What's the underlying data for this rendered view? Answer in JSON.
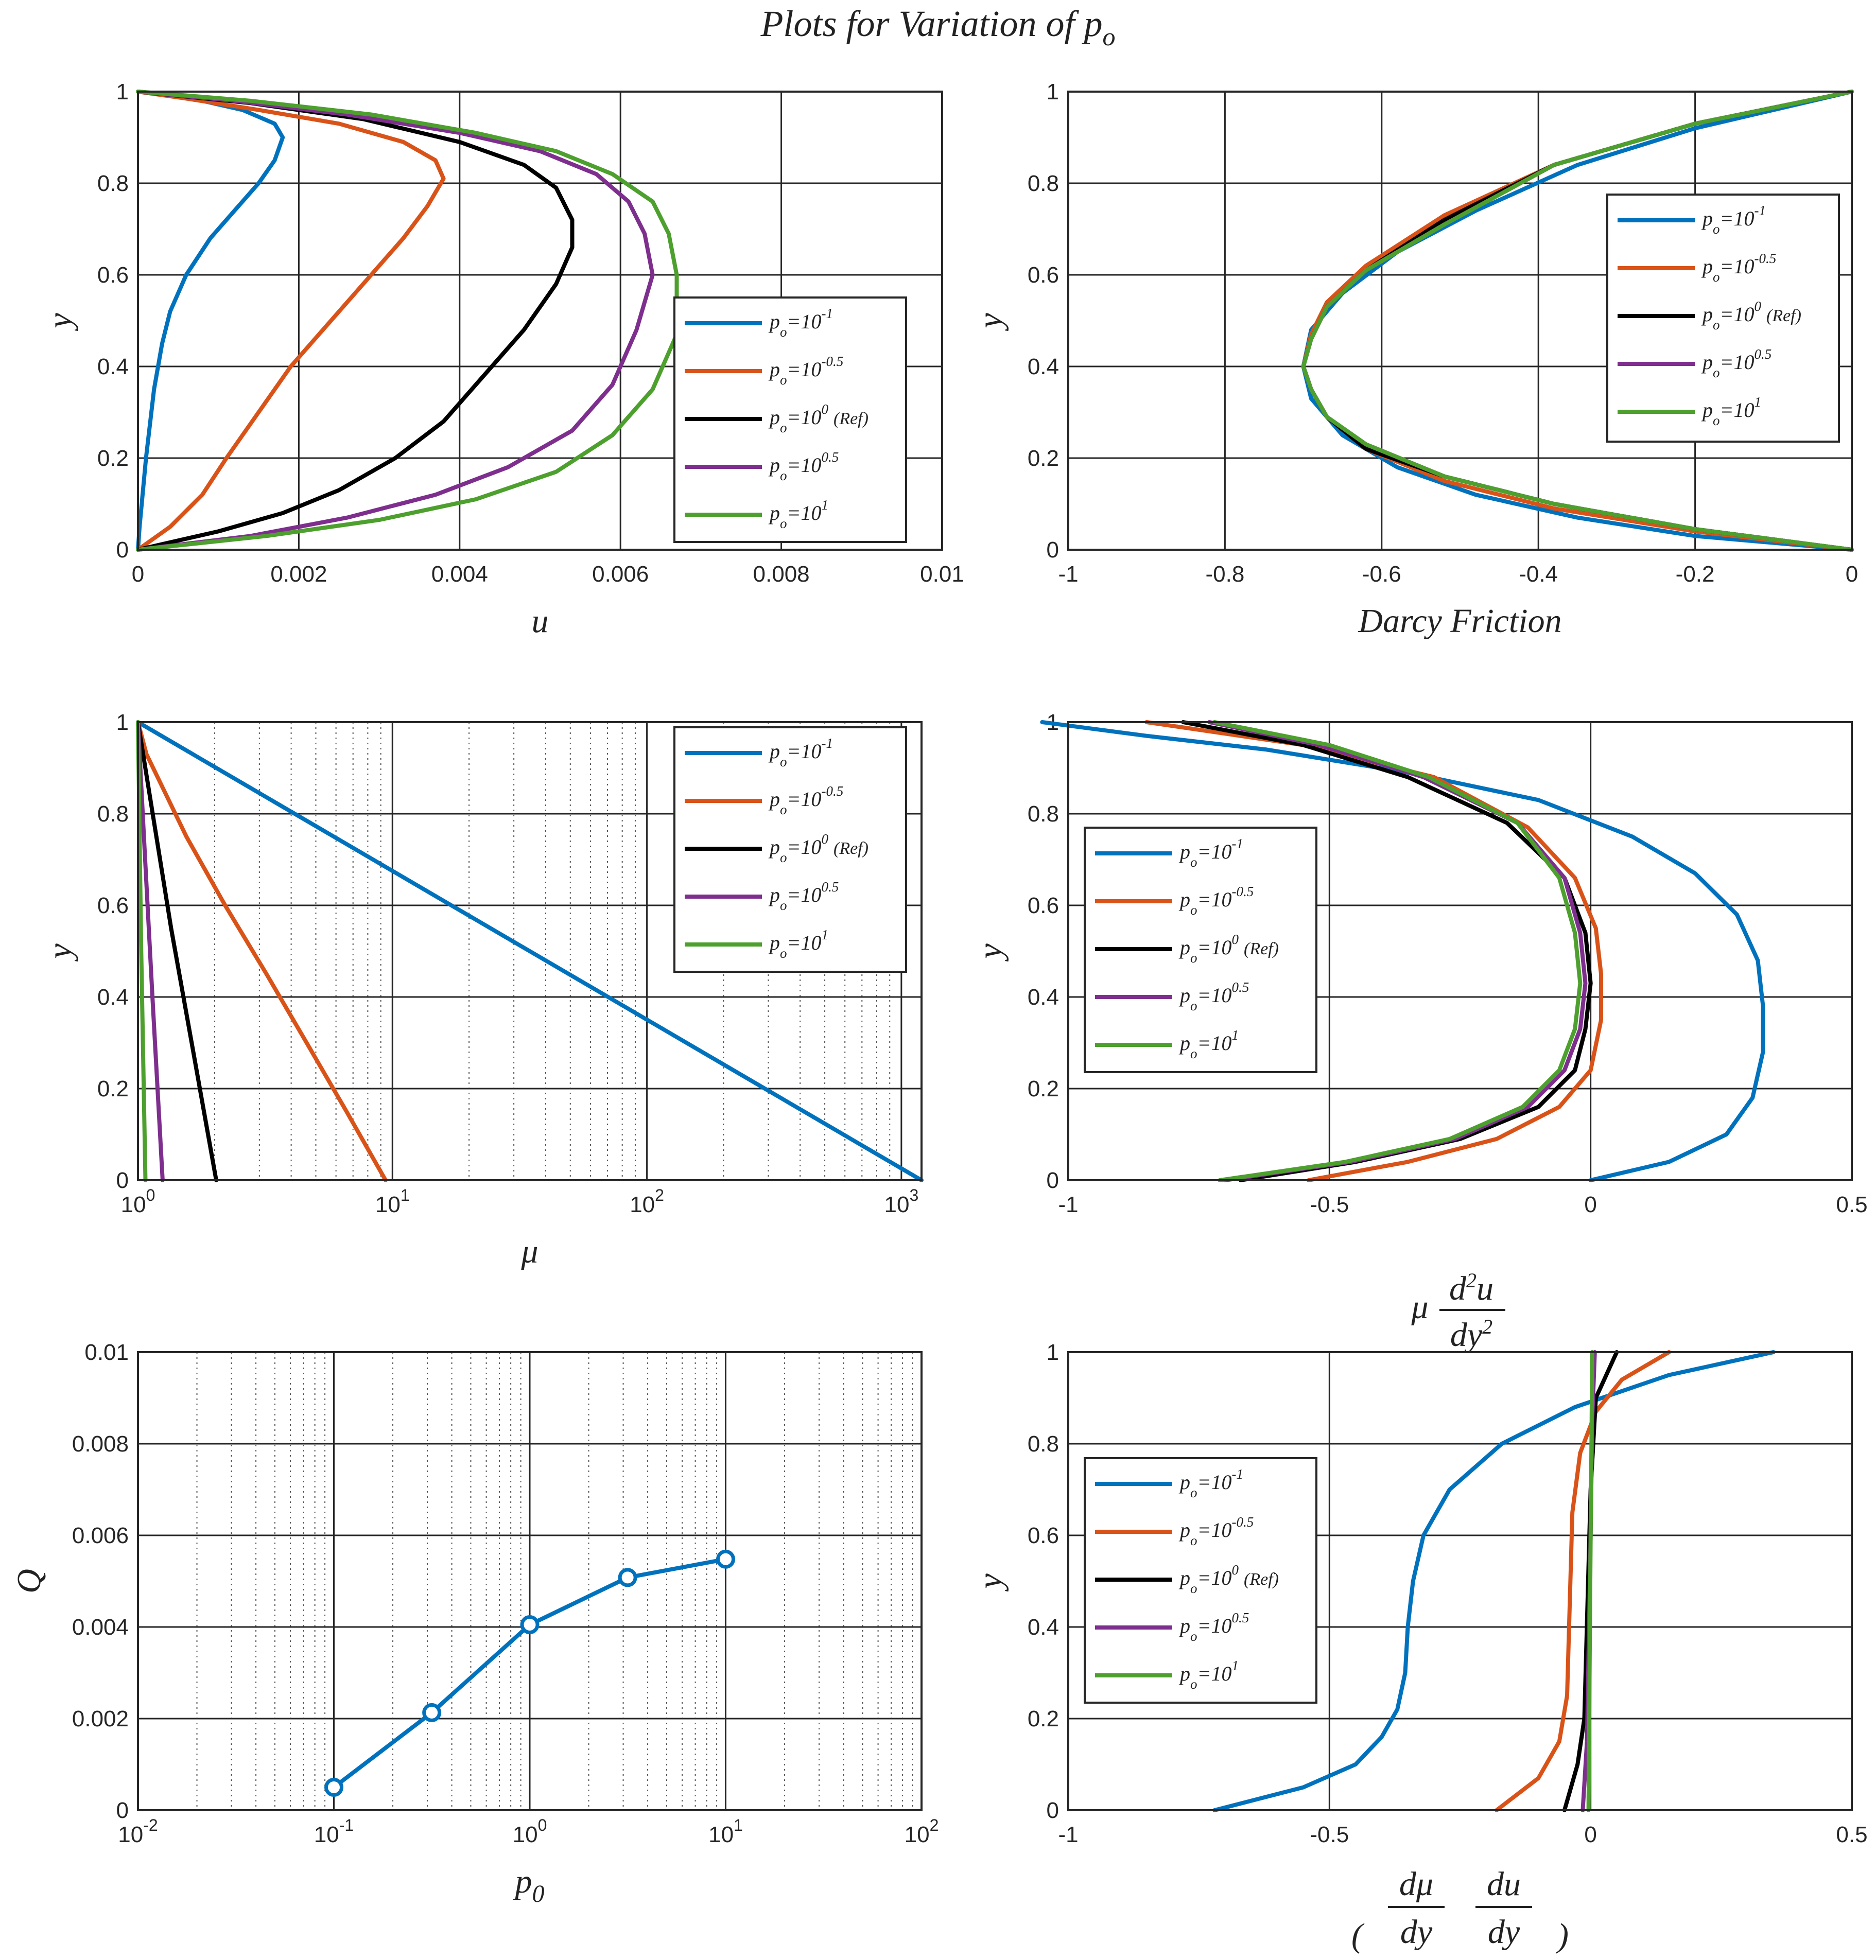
{
  "figure": {
    "title": {
      "main": "Plots for Variation of p",
      "sub": "o"
    }
  },
  "colors": {
    "p-1": "#0072BD",
    "p-0.5": "#D95319",
    "p0": "#000000",
    "p0.5": "#7E2F8E",
    "p1": "#4DA02E",
    "grid": "#262626",
    "frame": "#262626"
  },
  "legend_entries": [
    {
      "key": "p-1",
      "base": "p",
      "sub": "o",
      "mid": "=10",
      "sup": "-1",
      "extra": ""
    },
    {
      "key": "p-0.5",
      "base": "p",
      "sub": "o",
      "mid": "=10",
      "sup": "-0.5",
      "extra": ""
    },
    {
      "key": "p0",
      "base": "p",
      "sub": "o",
      "mid": "=10",
      "sup": "0",
      "extra": "(Ref)"
    },
    {
      "key": "p0.5",
      "base": "p",
      "sub": "o",
      "mid": "=10",
      "sup": "0.5",
      "extra": ""
    },
    {
      "key": "p1",
      "base": "p",
      "sub": "o",
      "mid": "=10",
      "sup": "1",
      "extra": ""
    }
  ],
  "chart_data": [
    {
      "id": "u",
      "type": "line",
      "xlabel": "u",
      "ylabel": "y",
      "xlim": [
        0,
        0.01
      ],
      "ylim": [
        0,
        1
      ],
      "xticks": [
        "0",
        "0.002",
        "0.004",
        "0.006",
        "0.008",
        "0.01"
      ],
      "yticks": [
        "0",
        "0.2",
        "0.4",
        "0.6",
        "0.8",
        "1"
      ],
      "grid": true,
      "legend": "right-middle",
      "series": [
        {
          "key": "p-1",
          "x": [
            0,
            2e-05,
            0.0001,
            0.0002,
            0.0003,
            0.0004,
            0.0006,
            0.0009,
            0.0012,
            0.0015,
            0.0017,
            0.0018,
            0.0017,
            0.0013,
            0.0008,
            0.0003,
            0
          ],
          "y": [
            0,
            0.05,
            0.2,
            0.35,
            0.45,
            0.52,
            0.6,
            0.68,
            0.74,
            0.8,
            0.85,
            0.9,
            0.93,
            0.96,
            0.98,
            0.995,
            1
          ]
        },
        {
          "key": "p-0.5",
          "x": [
            0,
            0.0004,
            0.0008,
            0.0011,
            0.0015,
            0.0019,
            0.0024,
            0.0029,
            0.0033,
            0.0036,
            0.0038,
            0.0037,
            0.0033,
            0.0025,
            0.0015,
            0.0006,
            0
          ],
          "y": [
            0,
            0.05,
            0.12,
            0.2,
            0.3,
            0.4,
            0.5,
            0.6,
            0.68,
            0.75,
            0.81,
            0.85,
            0.89,
            0.93,
            0.96,
            0.985,
            1
          ]
        },
        {
          "key": "p0",
          "x": [
            0,
            0.001,
            0.0018,
            0.0025,
            0.0032,
            0.0038,
            0.0043,
            0.0048,
            0.0052,
            0.0054,
            0.0054,
            0.0052,
            0.0048,
            0.004,
            0.0028,
            0.0014,
            0
          ],
          "y": [
            0,
            0.04,
            0.08,
            0.13,
            0.2,
            0.28,
            0.38,
            0.48,
            0.58,
            0.66,
            0.72,
            0.79,
            0.84,
            0.89,
            0.94,
            0.975,
            1
          ]
        },
        {
          "key": "p0.5",
          "x": [
            0,
            0.0014,
            0.0026,
            0.0037,
            0.0046,
            0.0054,
            0.0059,
            0.0062,
            0.0064,
            0.0063,
            0.0061,
            0.0057,
            0.005,
            0.004,
            0.0026,
            0.0012,
            0
          ],
          "y": [
            0,
            0.03,
            0.07,
            0.12,
            0.18,
            0.26,
            0.36,
            0.48,
            0.6,
            0.69,
            0.76,
            0.82,
            0.87,
            0.91,
            0.95,
            0.98,
            1
          ]
        },
        {
          "key": "p1",
          "x": [
            0,
            0.0016,
            0.003,
            0.0042,
            0.0052,
            0.0059,
            0.0064,
            0.0067,
            0.0067,
            0.0066,
            0.0064,
            0.0059,
            0.0052,
            0.0042,
            0.0029,
            0.0014,
            0
          ],
          "y": [
            0,
            0.03,
            0.065,
            0.11,
            0.17,
            0.25,
            0.35,
            0.47,
            0.6,
            0.69,
            0.76,
            0.82,
            0.87,
            0.91,
            0.95,
            0.98,
            1
          ]
        }
      ]
    },
    {
      "id": "darcy",
      "type": "line",
      "xlabel": "Darcy Friction",
      "ylabel": "y",
      "xlim": [
        -1,
        0
      ],
      "ylim": [
        0,
        1
      ],
      "xticks": [
        "-1",
        "-0.8",
        "-0.6",
        "-0.4",
        "-0.2",
        "0"
      ],
      "yticks": [
        "0",
        "0.2",
        "0.4",
        "0.6",
        "0.8",
        "1"
      ],
      "grid": true,
      "legend": "right-middle",
      "series": [
        {
          "key": "p-1",
          "x": [
            0,
            -0.2,
            -0.35,
            -0.48,
            -0.58,
            -0.65,
            -0.69,
            -0.7,
            -0.69,
            -0.65,
            -0.58,
            -0.48,
            -0.35,
            -0.2,
            0
          ],
          "y": [
            0,
            0.03,
            0.07,
            0.12,
            0.18,
            0.25,
            0.33,
            0.4,
            0.48,
            0.56,
            0.65,
            0.74,
            0.84,
            0.92,
            1
          ]
        },
        {
          "key": "p-0.5",
          "x": [
            0,
            -0.2,
            -0.38,
            -0.52,
            -0.62,
            -0.67,
            -0.69,
            -0.7,
            -0.69,
            -0.67,
            -0.62,
            -0.52,
            -0.38,
            -0.2,
            0
          ],
          "y": [
            0,
            0.04,
            0.09,
            0.15,
            0.22,
            0.29,
            0.35,
            0.4,
            0.47,
            0.54,
            0.62,
            0.73,
            0.84,
            0.93,
            1
          ]
        },
        {
          "key": "p0",
          "x": [
            0,
            -0.2,
            -0.38,
            -0.52,
            -0.62,
            -0.67,
            -0.69,
            -0.7,
            -0.69,
            -0.67,
            -0.62,
            -0.52,
            -0.38,
            -0.2,
            0
          ],
          "y": [
            0,
            0.045,
            0.1,
            0.16,
            0.22,
            0.29,
            0.35,
            0.4,
            0.46,
            0.53,
            0.61,
            0.72,
            0.84,
            0.93,
            1
          ]
        },
        {
          "key": "p0.5",
          "x": [
            0,
            -0.2,
            -0.38,
            -0.52,
            -0.62,
            -0.67,
            -0.69,
            -0.7,
            -0.69,
            -0.67,
            -0.62,
            -0.52,
            -0.38,
            -0.2,
            0
          ],
          "y": [
            0,
            0.045,
            0.1,
            0.16,
            0.23,
            0.29,
            0.35,
            0.4,
            0.46,
            0.53,
            0.61,
            0.71,
            0.84,
            0.93,
            1
          ]
        },
        {
          "key": "p1",
          "x": [
            0,
            -0.2,
            -0.38,
            -0.52,
            -0.62,
            -0.67,
            -0.69,
            -0.7,
            -0.69,
            -0.67,
            -0.62,
            -0.52,
            -0.38,
            -0.2,
            0
          ],
          "y": [
            0,
            0.045,
            0.1,
            0.16,
            0.23,
            0.29,
            0.35,
            0.4,
            0.46,
            0.53,
            0.61,
            0.71,
            0.84,
            0.93,
            1
          ]
        }
      ]
    },
    {
      "id": "mu",
      "type": "line",
      "xscale": "log",
      "xlabel": "μ",
      "ylabel": "y",
      "xlim": [
        1,
        1200
      ],
      "ylim": [
        0,
        1
      ],
      "xticks": [
        {
          "base": "10",
          "exp": "0"
        },
        {
          "base": "10",
          "exp": "1"
        },
        {
          "base": "10",
          "exp": "2"
        },
        {
          "base": "10",
          "exp": "3"
        }
      ],
      "yticks": [
        "0",
        "0.2",
        "0.4",
        "0.6",
        "0.8",
        "1"
      ],
      "grid": true,
      "legend": "top-right",
      "series": [
        {
          "key": "p-1",
          "x": [
            1200,
            1
          ],
          "y": [
            0,
            1
          ]
        },
        {
          "key": "p-0.5",
          "x": [
            9.4,
            6.6,
            4.6,
            3.2,
            2.2,
            1.55,
            1.08,
            1
          ],
          "y": [
            0,
            0.15,
            0.3,
            0.45,
            0.6,
            0.75,
            0.93,
            1
          ]
        },
        {
          "key": "p0",
          "x": [
            2.03,
            1.65,
            1.35,
            1.12,
            1
          ],
          "y": [
            0,
            0.28,
            0.55,
            0.83,
            1
          ]
        },
        {
          "key": "p0.5",
          "x": [
            1.25,
            1.14,
            1.06,
            1
          ],
          "y": [
            0,
            0.4,
            0.73,
            1
          ]
        },
        {
          "key": "p1",
          "x": [
            1.07,
            1.03,
            1
          ],
          "y": [
            0,
            0.5,
            1
          ]
        }
      ]
    },
    {
      "id": "mud2u",
      "type": "line",
      "xlabel": "μ d²u/dy²",
      "ylabel": "y",
      "xlim": [
        -1,
        0.5
      ],
      "ylim": [
        0,
        1
      ],
      "xticks": [
        "-1",
        "-0.5",
        "0",
        "0.5"
      ],
      "yticks": [
        "0",
        "0.2",
        "0.4",
        "0.6",
        "0.8",
        "1"
      ],
      "grid": true,
      "legend": "left-middle",
      "series": [
        {
          "key": "p-1",
          "x": [
            0,
            0.15,
            0.26,
            0.31,
            0.33,
            0.33,
            0.32,
            0.28,
            0.2,
            0.08,
            -0.1,
            -0.35,
            -0.62,
            -0.85,
            -1.05
          ],
          "y": [
            0,
            0.04,
            0.1,
            0.18,
            0.28,
            0.38,
            0.48,
            0.58,
            0.67,
            0.75,
            0.83,
            0.89,
            0.94,
            0.97,
            1
          ]
        },
        {
          "key": "p-0.5",
          "x": [
            -0.54,
            -0.35,
            -0.18,
            -0.06,
            0,
            0.02,
            0.02,
            0.01,
            -0.03,
            -0.12,
            -0.3,
            -0.55,
            -0.85
          ],
          "y": [
            0,
            0.04,
            0.09,
            0.16,
            0.24,
            0.35,
            0.45,
            0.55,
            0.66,
            0.77,
            0.88,
            0.95,
            1
          ]
        },
        {
          "key": "p0",
          "x": [
            -0.67,
            -0.45,
            -0.25,
            -0.1,
            -0.03,
            -0.01,
            0,
            -0.01,
            -0.05,
            -0.16,
            -0.35,
            -0.55,
            -0.78
          ],
          "y": [
            0,
            0.04,
            0.09,
            0.16,
            0.24,
            0.33,
            0.43,
            0.54,
            0.66,
            0.78,
            0.88,
            0.95,
            1
          ]
        },
        {
          "key": "p0.5",
          "x": [
            -0.7,
            -0.46,
            -0.26,
            -0.12,
            -0.05,
            -0.02,
            -0.01,
            -0.02,
            -0.05,
            -0.14,
            -0.32,
            -0.52,
            -0.73
          ],
          "y": [
            0,
            0.04,
            0.09,
            0.16,
            0.24,
            0.33,
            0.43,
            0.54,
            0.66,
            0.78,
            0.88,
            0.95,
            1
          ]
        },
        {
          "key": "p1",
          "x": [
            -0.71,
            -0.47,
            -0.27,
            -0.13,
            -0.06,
            -0.03,
            -0.02,
            -0.03,
            -0.06,
            -0.14,
            -0.31,
            -0.5,
            -0.72
          ],
          "y": [
            0,
            0.04,
            0.09,
            0.16,
            0.24,
            0.33,
            0.43,
            0.54,
            0.66,
            0.78,
            0.88,
            0.95,
            1
          ]
        }
      ]
    },
    {
      "id": "Q",
      "type": "line",
      "xscale": "log",
      "markers": "circle",
      "xlabel": "p",
      "xlabel_sub": "0",
      "ylabel": "Q",
      "xlim": [
        0.01,
        100
      ],
      "ylim": [
        0,
        0.01
      ],
      "xticks": [
        {
          "base": "10",
          "exp": "-2"
        },
        {
          "base": "10",
          "exp": "-1"
        },
        {
          "base": "10",
          "exp": "0"
        },
        {
          "base": "10",
          "exp": "1"
        },
        {
          "base": "10",
          "exp": "2"
        }
      ],
      "yticks": [
        "0",
        "0.002",
        "0.004",
        "0.006",
        "0.008",
        "0.01"
      ],
      "grid": true,
      "series": [
        {
          "key": "p-1",
          "x": [
            0.1,
            0.316,
            1,
            3.16,
            10
          ],
          "y": [
            0.0005,
            0.00213,
            0.00405,
            0.00508,
            0.00548
          ]
        }
      ]
    },
    {
      "id": "dmudu",
      "type": "line",
      "xlabel": "(dμ/dy du/dy)",
      "ylabel": "y",
      "xlim": [
        -1,
        0.5
      ],
      "ylim": [
        0,
        1
      ],
      "xticks": [
        "-1",
        "-0.5",
        "0",
        "0.5"
      ],
      "yticks": [
        "0",
        "0.2",
        "0.4",
        "0.6",
        "0.8",
        "1"
      ],
      "grid": true,
      "legend": "left-middle",
      "series": [
        {
          "key": "p-1",
          "x": [
            -0.72,
            -0.55,
            -0.45,
            -0.4,
            -0.37,
            -0.355,
            -0.35,
            -0.34,
            -0.32,
            -0.27,
            -0.17,
            -0.03,
            0.15,
            0.35
          ],
          "y": [
            0,
            0.05,
            0.1,
            0.16,
            0.22,
            0.3,
            0.4,
            0.5,
            0.6,
            0.7,
            0.8,
            0.88,
            0.95,
            1
          ]
        },
        {
          "key": "p-0.5",
          "x": [
            -0.18,
            -0.1,
            -0.06,
            -0.045,
            -0.04,
            -0.035,
            -0.02,
            0.01,
            0.06,
            0.15
          ],
          "y": [
            0,
            0.07,
            0.15,
            0.25,
            0.45,
            0.65,
            0.78,
            0.87,
            0.94,
            1
          ]
        },
        {
          "key": "p0",
          "x": [
            -0.05,
            -0.025,
            -0.012,
            -0.006,
            0,
            0.01,
            0.05
          ],
          "y": [
            0,
            0.1,
            0.2,
            0.45,
            0.7,
            0.9,
            1
          ]
        },
        {
          "key": "p0.5",
          "x": [
            -0.015,
            -0.007,
            -0.003,
            0,
            0.003,
            0.008
          ],
          "y": [
            0,
            0.15,
            0.4,
            0.6,
            0.85,
            1
          ]
        },
        {
          "key": "p1",
          "x": [
            -0.004,
            -0.002,
            0,
            0.002,
            0.003
          ],
          "y": [
            0,
            0.3,
            0.6,
            0.85,
            1
          ]
        }
      ]
    }
  ]
}
